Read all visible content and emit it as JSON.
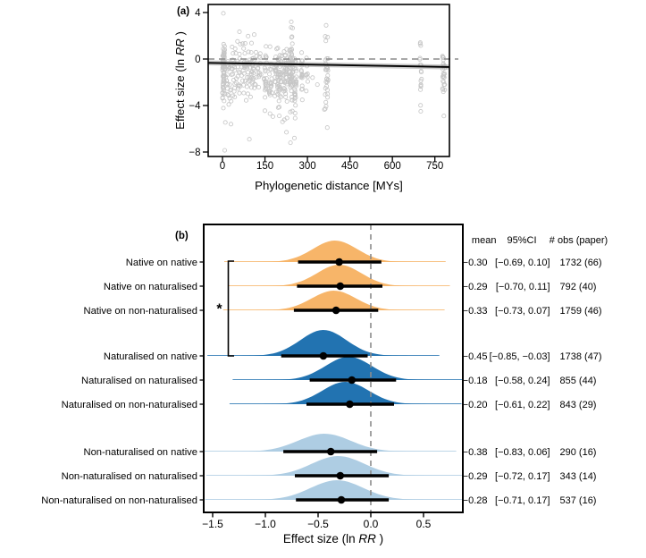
{
  "figure": {
    "panel_a_letter": "(a)",
    "panel_b_letter": "(b)"
  },
  "colors": {
    "orange": "#F7B569",
    "dark_blue": "#2273B1",
    "light_blue": "#AECDE3",
    "dashed_gray": "#8C8C8C",
    "scatter_gray": "#C6C6C6",
    "ci_band_gray": "#9E9E9E",
    "black": "#000000"
  },
  "chart_data": [
    {
      "id": "a",
      "type": "scatter",
      "xlabel": {
        "text": "Phylogenetic distance [MYs]"
      },
      "ylabel": {
        "prefix": "Effect size (ln ",
        "italic": "RR",
        "suffix": " )"
      },
      "xlim": [
        -50,
        800
      ],
      "ylim": [
        -8.4,
        4.7
      ],
      "xticks": [
        {
          "v": 0,
          "label": "0"
        },
        {
          "v": 150,
          "label": "150"
        },
        {
          "v": 300,
          "label": "300"
        },
        {
          "v": 450,
          "label": "450"
        },
        {
          "v": 600,
          "label": "600"
        },
        {
          "v": 750,
          "label": "750"
        }
      ],
      "yticks": [
        {
          "v": 4,
          "label": "4"
        },
        {
          "v": 0,
          "label": "0"
        },
        {
          "v": -4,
          "label": "−4"
        },
        {
          "v": -8,
          "label": "−8"
        }
      ],
      "reference_line_y": 0,
      "regression_line": {
        "x": [
          -50,
          800
        ],
        "y": [
          -0.31,
          -0.68
        ]
      },
      "scatter_clusters": [
        {
          "x": 4,
          "xs": 4,
          "n": 65,
          "yc": -1.0,
          "ysd": 1.4,
          "ymin": -4.6,
          "ymax": 1.8
        },
        {
          "x": 30,
          "xs": 18,
          "n": 40,
          "yc": -1.4,
          "ysd": 1.3,
          "ymin": -4.5,
          "ymax": 1.6
        },
        {
          "x": 70,
          "xs": 22,
          "n": 48,
          "yc": -0.9,
          "ysd": 1.2,
          "ymin": -4.3,
          "ymax": 2.2
        },
        {
          "x": 108,
          "xs": 14,
          "n": 32,
          "yc": -0.9,
          "ysd": 1.1,
          "ymin": -3.6,
          "ymax": 1.7
        },
        {
          "x": 133,
          "xs": 8,
          "n": 12,
          "yc": -1.1,
          "ysd": 1.0,
          "ymin": -3.0,
          "ymax": 1.2
        },
        {
          "x": 152,
          "xs": 5,
          "n": 22,
          "yc": -1.2,
          "ysd": 1.2,
          "ymin": -4.3,
          "ymax": 1.4
        },
        {
          "x": 170,
          "xs": 5,
          "n": 18,
          "yc": -1.5,
          "ysd": 1.2,
          "ymin": -4.8,
          "ymax": 1.1
        },
        {
          "x": 188,
          "xs": 4,
          "n": 16,
          "yc": -1.6,
          "ysd": 1.2,
          "ymin": -4.6,
          "ymax": 0.9
        },
        {
          "x": 202,
          "xs": 8,
          "n": 42,
          "yc": -1.5,
          "ysd": 1.4,
          "ymin": -5.3,
          "ymax": 1.5
        },
        {
          "x": 222,
          "xs": 6,
          "n": 36,
          "yc": -1.8,
          "ysd": 1.5,
          "ymin": -6.2,
          "ymax": 1.6
        },
        {
          "x": 242,
          "xs": 6,
          "n": 60,
          "yc": -1.1,
          "ysd": 1.6,
          "ymin": -6.7,
          "ymax": 3.1
        },
        {
          "x": 257,
          "xs": 4,
          "n": 28,
          "yc": -2.0,
          "ysd": 1.5,
          "ymin": -5.5,
          "ymax": 1.3
        },
        {
          "x": 280,
          "xs": 3,
          "n": 20,
          "yc": -0.9,
          "ysd": 1.2,
          "ymin": -3.6,
          "ymax": 1.6
        },
        {
          "x": 298,
          "xs": 3,
          "n": 8,
          "yc": -1.2,
          "ysd": 1.0,
          "ymin": -2.8,
          "ymax": 0.8
        },
        {
          "x": 368,
          "xs": 6,
          "n": 28,
          "yc": -1.4,
          "ysd": 1.7,
          "ymin": -6.1,
          "ymax": 2.9
        },
        {
          "x": 700,
          "xs": 3,
          "n": 16,
          "yc": -1.2,
          "ysd": 1.4,
          "ymin": -4.5,
          "ymax": 1.5
        },
        {
          "x": 781,
          "xs": 4,
          "n": 26,
          "yc": -1.6,
          "ysd": 1.5,
          "ymin": -5.0,
          "ymax": 1.1
        }
      ],
      "scatter_outliers": [
        [
          3,
          3.93
        ],
        [
          243,
          3.2
        ],
        [
          366,
          2.9
        ],
        [
          60,
          2.35
        ],
        [
          112,
          2.1
        ],
        [
          10,
          -5.45
        ],
        [
          30,
          -5.6
        ],
        [
          8,
          -7.85
        ],
        [
          95,
          -6.9
        ],
        [
          240,
          -7.2
        ],
        [
          254,
          -6.8
        ],
        [
          370,
          -5.9
        ],
        [
          360,
          -4.35
        ],
        [
          150,
          -4.45
        ],
        [
          168,
          -4.7
        ],
        [
          178,
          -4.95
        ],
        [
          212,
          -5.4
        ],
        [
          226,
          -6.3
        ],
        [
          700,
          -4.5
        ],
        [
          782,
          -4.9
        ],
        [
          335,
          -2.2
        ],
        [
          318,
          -1.6
        ]
      ]
    },
    {
      "id": "b",
      "type": "ridgeline",
      "xlabel": {
        "prefix": "Effect size (ln ",
        "italic": "RR",
        "suffix": " )"
      },
      "xlim": [
        -1.6,
        0.87
      ],
      "xticks": [
        {
          "v": -1.5,
          "label": "−1.5"
        },
        {
          "v": -1.0,
          "label": "−1.0"
        },
        {
          "v": -0.5,
          "label": "−0.5"
        },
        {
          "v": 0.0,
          "label": "0.0"
        },
        {
          "v": 0.5,
          "label": "0.5"
        }
      ],
      "reference_line_x": 0,
      "stats_header": {
        "mean": "mean",
        "ci": "95%CI",
        "obs": "# obs (paper)"
      },
      "rows": [
        {
          "label": "Native on native",
          "group": "native",
          "color_key": "orange",
          "mean": -0.3,
          "ci": [
            -0.69,
            0.1
          ],
          "obs": 1732,
          "papers": 66,
          "mean_text": "−0.30",
          "ci_text": "[−0.69,  0.10]",
          "obs_text": "1732 (66)",
          "peak": -0.34,
          "sd": 0.21,
          "amp": 24
        },
        {
          "label": "Native on naturalised",
          "group": "native",
          "color_key": "orange",
          "mean": -0.29,
          "ci": [
            -0.7,
            0.11
          ],
          "obs": 792,
          "papers": 40,
          "mean_text": "−0.29",
          "ci_text": "[−0.70,  0.11]",
          "obs_text": "792 (40)",
          "peak": -0.3,
          "sd": 0.21,
          "amp": 24
        },
        {
          "label": "Native on non-naturalised",
          "group": "native",
          "color_key": "orange",
          "mean": -0.33,
          "ci": [
            -0.73,
            0.07
          ],
          "obs": 1759,
          "papers": 46,
          "mean_text": "−0.33",
          "ci_text": "[−0.73,  0.07]",
          "obs_text": "1759 (46)",
          "peak": -0.35,
          "sd": 0.21,
          "amp": 22
        },
        {
          "label": "Naturalised on native",
          "group": "naturalised",
          "color_key": "dark_blue",
          "mean": -0.45,
          "ci": [
            -0.85,
            -0.03
          ],
          "obs": 1738,
          "papers": 47,
          "mean_text": "−0.45",
          "ci_text": "[−0.85, −0.03]",
          "obs_text": "1738 (47)",
          "peak": -0.45,
          "sd": 0.22,
          "amp": 29
        },
        {
          "label": "Naturalised on naturalised",
          "group": "naturalised",
          "color_key": "dark_blue",
          "mean": -0.18,
          "ci": [
            -0.58,
            0.24
          ],
          "obs": 855,
          "papers": 44,
          "mean_text": "−0.18",
          "ci_text": "[−0.58,  0.24]",
          "obs_text": "855 (44)",
          "peak": -0.21,
          "sd": 0.22,
          "amp": 26
        },
        {
          "label": "Naturalised on non-naturalised",
          "group": "naturalised",
          "color_key": "dark_blue",
          "mean": -0.2,
          "ci": [
            -0.61,
            0.22
          ],
          "obs": 843,
          "papers": 29,
          "mean_text": "−0.20",
          "ci_text": "[−0.61,  0.22]",
          "obs_text": "843 (29)",
          "peak": -0.24,
          "sd": 0.22,
          "amp": 25
        },
        {
          "label": "Non-naturalised on native",
          "group": "non-naturalised",
          "color_key": "light_blue",
          "mean": -0.38,
          "ci": [
            -0.83,
            0.06
          ],
          "obs": 290,
          "papers": 16,
          "mean_text": "−0.38",
          "ci_text": "[−0.83,  0.06]",
          "obs_text": "290 (16)",
          "peak": -0.44,
          "sd": 0.25,
          "amp": 20
        },
        {
          "label": "Non-naturalised on naturalised",
          "group": "non-naturalised",
          "color_key": "light_blue",
          "mean": -0.29,
          "ci": [
            -0.72,
            0.17
          ],
          "obs": 343,
          "papers": 14,
          "mean_text": "−0.29",
          "ci_text": "[−0.72,  0.17]",
          "obs_text": "343 (14)",
          "peak": -0.31,
          "sd": 0.25,
          "amp": 22
        },
        {
          "label": "Non-naturalised on non-naturalised",
          "group": "non-naturalised",
          "color_key": "light_blue",
          "mean": -0.28,
          "ci": [
            -0.71,
            0.17
          ],
          "obs": 537,
          "papers": 16,
          "mean_text": "−0.28",
          "ci_text": "[−0.71,  0.17]",
          "obs_text": "537 (16)",
          "peak": -0.32,
          "sd": 0.25,
          "amp": 22
        }
      ],
      "significance": {
        "label": "*",
        "from_row": 0,
        "to_row": 3
      }
    }
  ]
}
